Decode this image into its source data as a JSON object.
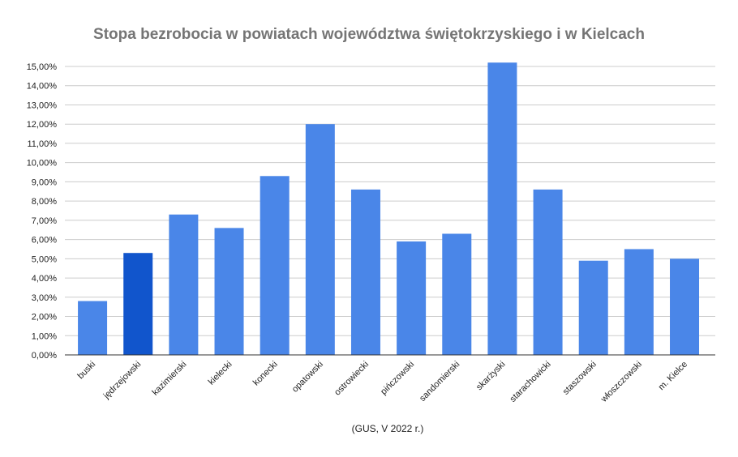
{
  "chart_data": {
    "type": "bar",
    "title": "Stopa bezrobocia w powiatach województwa świętokrzyskiego i w Kielcach",
    "xlabel": "(GUS, V 2022 r.)",
    "ylabel": "",
    "ylim": [
      0,
      15
    ],
    "yticks": [
      "0,00%",
      "1,00%",
      "2,00%",
      "3,00%",
      "4,00%",
      "5,00%",
      "6,00%",
      "7,00%",
      "8,00%",
      "9,00%",
      "10,00%",
      "11,00%",
      "12,00%",
      "13,00%",
      "14,00%",
      "15,00%"
    ],
    "grid": true,
    "categories": [
      "buski",
      "jędrzejowski",
      "kazimierski",
      "kielecki",
      "konecki",
      "opatowski",
      "ostrowiecki",
      "pińczowski",
      "sandomierski",
      "skarżyski",
      "starachowicki",
      "staszowski",
      "włoszczowski",
      "m. Kielce"
    ],
    "values": [
      2.8,
      5.3,
      7.3,
      6.6,
      9.3,
      12.0,
      8.6,
      5.9,
      6.3,
      15.2,
      8.6,
      4.9,
      5.5,
      5.0
    ],
    "unit": "%",
    "colors": {
      "bar": "#4a86e8",
      "highlight": "#1155cc",
      "highlight_category": "jędrzejowski"
    }
  }
}
